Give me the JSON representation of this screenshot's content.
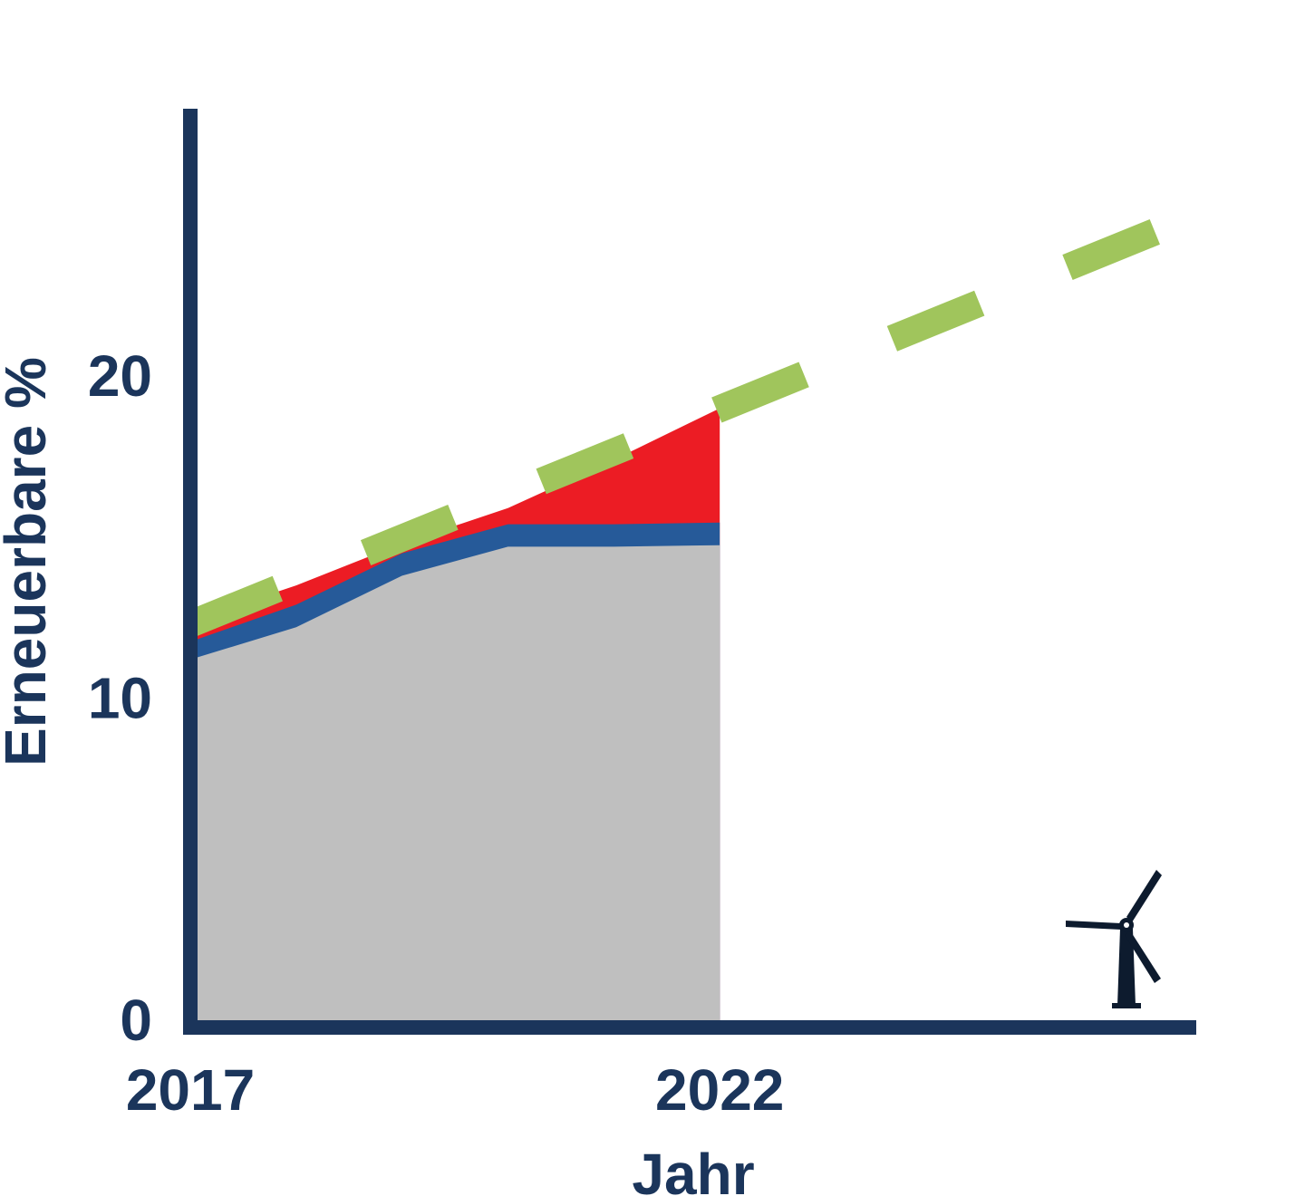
{
  "chart_data": {
    "type": "area",
    "xlabel": "Jahr",
    "ylabel": "Erneuerbare %",
    "x_ticks": [
      "2017",
      "2022"
    ],
    "y_ticks": [
      "0",
      "10",
      "20"
    ],
    "xlim": [
      2017,
      2026.5
    ],
    "ylim": [
      0,
      28.3
    ],
    "x": [
      2017,
      2018,
      2019,
      2020,
      2021,
      2022
    ],
    "series": [
      {
        "values": [
          11.2,
          12.2,
          13.8,
          14.7,
          14.7,
          14.75
        ],
        "color": "#bfbfbf"
      },
      {
        "values": [
          11.75,
          12.9,
          14.5,
          15.4,
          15.4,
          15.45
        ],
        "color": "#265a99"
      },
      {
        "values": [
          12.4,
          13.5,
          14.8,
          15.9,
          17.4,
          19.0
        ],
        "color": "#ec1c24"
      }
    ],
    "target": {
      "x": [
        2017,
        2026.5
      ],
      "values": [
        12.3,
        25.0
      ],
      "color": "#a0c55c",
      "style": "dashed"
    },
    "axis_color": "#1b355b",
    "grid": false,
    "legend": "none"
  },
  "icons": {
    "corner_icon": "wind-turbine-icon",
    "icon_color": "#0d1b2e"
  }
}
